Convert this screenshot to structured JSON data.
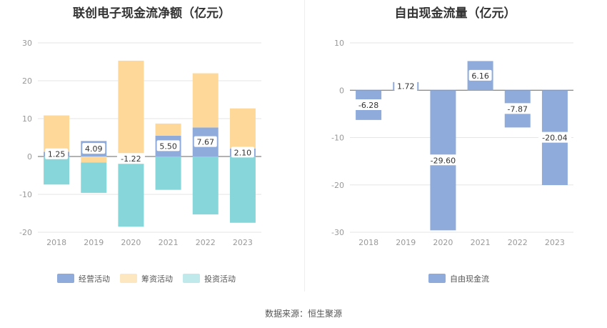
{
  "source_label": "数据来源：恒生聚源",
  "chart_data": [
    {
      "type": "bar",
      "stacked": true,
      "title": "联创电子现金流净额（亿元）",
      "categories": [
        "2018",
        "2019",
        "2020",
        "2021",
        "2022",
        "2023"
      ],
      "ylim": [
        -20,
        30
      ],
      "yticks": [
        -20,
        -10,
        0,
        10,
        20,
        30
      ],
      "grid": true,
      "legend_position": "bottom",
      "series": [
        {
          "name": "经营活动",
          "color": "#8eabdb",
          "values": [
            1.25,
            4.09,
            -1.22,
            5.5,
            7.67,
            2.1
          ],
          "labeled": true
        },
        {
          "name": "筹资活动",
          "color": "#fed899",
          "values": [
            9.6,
            -1.6,
            25.3,
            3.2,
            14.3,
            10.6
          ],
          "labeled": false
        },
        {
          "name": "投资活动",
          "color": "#87d6d9",
          "values": [
            -7.4,
            -8.0,
            -17.3,
            -8.8,
            -15.3,
            -17.5
          ],
          "labeled": false
        }
      ],
      "data_labels": [
        "1.25",
        "4.09",
        "-1.22",
        "5.50",
        "7.67",
        "2.10"
      ],
      "legend_colors": [
        "#8eabdb",
        "#fde7c0",
        "#c0e9ec"
      ]
    },
    {
      "type": "bar",
      "title": "自由现金流量（亿元）",
      "categories": [
        "2018",
        "2019",
        "2020",
        "2021",
        "2022",
        "2023"
      ],
      "ylim": [
        -30,
        10
      ],
      "yticks": [
        -30,
        -20,
        -10,
        0,
        10
      ],
      "grid": true,
      "legend_position": "bottom",
      "series": [
        {
          "name": "自由现金流",
          "color": "#8eabdb",
          "values": [
            -6.28,
            1.72,
            -29.6,
            6.16,
            -7.87,
            -20.04
          ]
        }
      ],
      "data_labels": [
        "-6.28",
        "1.72",
        "-29.60",
        "6.16",
        "-7.87",
        "-20.04"
      ]
    }
  ]
}
